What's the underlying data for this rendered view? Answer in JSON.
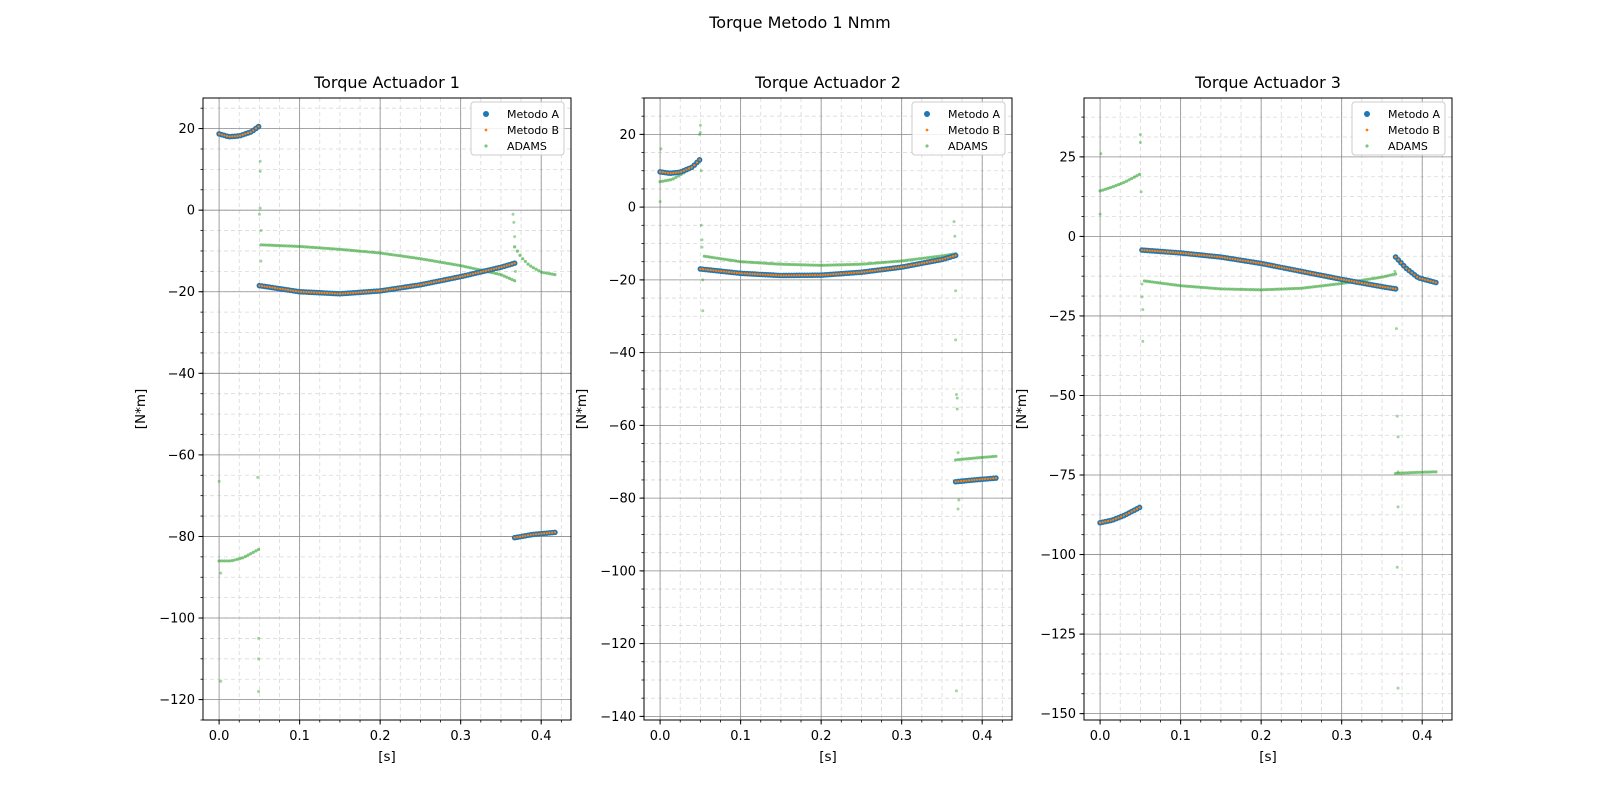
{
  "figure": {
    "suptitle": "Torque  Metodo 1 Nmm"
  },
  "chart_data": [
    {
      "type": "scatter",
      "title": "Torque Actuador 1",
      "xlabel": "[s]",
      "ylabel": "[N*m]",
      "xlim": [
        -0.02,
        0.437
      ],
      "ylim": [
        -125,
        27.5
      ],
      "xticks": [
        0.0,
        0.1,
        0.2,
        0.3,
        0.4
      ],
      "xticklabels": [
        "0.0",
        "0.1",
        "0.2",
        "0.3",
        "0.4"
      ],
      "yticks": [
        20,
        0,
        -20,
        -40,
        -60,
        -80,
        -100,
        -120
      ],
      "yticklabels": [
        "20",
        "0",
        "−20",
        "−40",
        "−60",
        "−80",
        "−100",
        "−120"
      ],
      "grid": true,
      "legend_position": "upper right",
      "series": [
        {
          "name": "Metodo A",
          "color": "#1f77b4",
          "segments": [
            {
              "x": [
                0.0,
                0.012,
                0.025,
                0.04,
                0.049
              ],
              "y": [
                18.7,
                18.0,
                18.2,
                19.2,
                20.5
              ]
            },
            {
              "x": [
                0.05,
                0.1,
                0.15,
                0.2,
                0.25,
                0.3,
                0.35,
                0.367
              ],
              "y": [
                -18.5,
                -20.0,
                -20.5,
                -19.8,
                -18.3,
                -16.3,
                -14.0,
                -13.0
              ]
            },
            {
              "x": [
                0.367,
                0.39,
                0.417
              ],
              "y": [
                -80.3,
                -79.5,
                -79.0
              ]
            }
          ]
        },
        {
          "name": "Metodo B",
          "color": "#ff7f0e",
          "segments": [
            {
              "x": [
                0.0,
                0.012,
                0.025,
                0.04,
                0.049
              ],
              "y": [
                18.7,
                18.0,
                18.2,
                19.2,
                20.5
              ]
            },
            {
              "x": [
                0.05,
                0.1,
                0.15,
                0.2,
                0.25,
                0.3,
                0.35,
                0.367
              ],
              "y": [
                -18.5,
                -20.0,
                -20.5,
                -19.8,
                -18.3,
                -16.3,
                -14.0,
                -13.0
              ]
            },
            {
              "x": [
                0.367,
                0.39,
                0.417
              ],
              "y": [
                -80.3,
                -79.5,
                -79.0
              ]
            }
          ]
        },
        {
          "name": "ADAMS",
          "color": "#2ca02c",
          "segments": [
            {
              "x": [
                0.0,
                0.015,
                0.03,
                0.049
              ],
              "y": [
                -86.0,
                -86.0,
                -85.2,
                -83.2
              ]
            },
            {
              "x": [
                0.052,
                0.1,
                0.15,
                0.2,
                0.25,
                0.3,
                0.35,
                0.367
              ],
              "y": [
                -8.5,
                -8.9,
                -9.6,
                -10.5,
                -11.9,
                -13.6,
                -15.8,
                -17.3
              ]
            },
            {
              "x": [
                0.367,
                0.375,
                0.385,
                0.4,
                0.417
              ],
              "y": [
                -9.0,
                -11.5,
                -13.5,
                -15.2,
                -15.8
              ]
            }
          ],
          "outliers": [
            [
              0.0,
              -66.5
            ],
            [
              0.002,
              -89.0
            ],
            [
              0.002,
              -115.5
            ],
            [
              0.048,
              -65.5
            ],
            [
              0.049,
              -105.0
            ],
            [
              0.049,
              -110.0
            ],
            [
              0.049,
              -118.0
            ],
            [
              0.05,
              -1.0
            ],
            [
              0.051,
              0.5
            ],
            [
              0.051,
              9.5
            ],
            [
              0.051,
              12.0
            ],
            [
              0.052,
              -5.0
            ],
            [
              0.052,
              -12.5
            ],
            [
              0.365,
              -1.0
            ],
            [
              0.366,
              -3.0
            ],
            [
              0.367,
              -6.5
            ],
            [
              0.368,
              -15.0
            ]
          ]
        }
      ]
    },
    {
      "type": "scatter",
      "title": "Torque Actuador 2",
      "xlabel": "[s]",
      "ylabel": "[N*m]",
      "xlim": [
        -0.02,
        0.437
      ],
      "ylim": [
        -141,
        30
      ],
      "xticks": [
        0.0,
        0.1,
        0.2,
        0.3,
        0.4
      ],
      "xticklabels": [
        "0.0",
        "0.1",
        "0.2",
        "0.3",
        "0.4"
      ],
      "yticks": [
        20,
        0,
        -20,
        -40,
        -60,
        -80,
        -100,
        -120,
        -140
      ],
      "yticklabels": [
        "20",
        "0",
        "−20",
        "−40",
        "−60",
        "−80",
        "−100",
        "−120",
        "−140"
      ],
      "grid": true,
      "legend_position": "upper right",
      "series": [
        {
          "name": "Metodo A",
          "color": "#1f77b4",
          "segments": [
            {
              "x": [
                0.0,
                0.012,
                0.025,
                0.04,
                0.049
              ],
              "y": [
                9.7,
                9.3,
                9.6,
                11.0,
                13.0
              ]
            },
            {
              "x": [
                0.05,
                0.1,
                0.15,
                0.2,
                0.25,
                0.3,
                0.35,
                0.367
              ],
              "y": [
                -17.0,
                -18.2,
                -18.8,
                -18.7,
                -17.9,
                -16.5,
                -14.4,
                -13.3
              ]
            },
            {
              "x": [
                0.367,
                0.39,
                0.417
              ],
              "y": [
                -75.5,
                -75.0,
                -74.5
              ]
            }
          ]
        },
        {
          "name": "Metodo B",
          "color": "#ff7f0e",
          "segments": [
            {
              "x": [
                0.0,
                0.012,
                0.025,
                0.04,
                0.049
              ],
              "y": [
                9.7,
                9.3,
                9.6,
                11.0,
                13.0
              ]
            },
            {
              "x": [
                0.05,
                0.1,
                0.15,
                0.2,
                0.25,
                0.3,
                0.35,
                0.367
              ],
              "y": [
                -17.0,
                -18.2,
                -18.8,
                -18.7,
                -17.9,
                -16.5,
                -14.4,
                -13.3
              ]
            },
            {
              "x": [
                0.367,
                0.39,
                0.417
              ],
              "y": [
                -75.5,
                -75.0,
                -74.5
              ]
            }
          ]
        },
        {
          "name": "ADAMS",
          "color": "#2ca02c",
          "segments": [
            {
              "x": [
                0.0,
                0.015,
                0.03,
                0.049
              ],
              "y": [
                7.0,
                7.6,
                9.5,
                12.5
              ]
            },
            {
              "x": [
                0.055,
                0.1,
                0.15,
                0.2,
                0.25,
                0.3,
                0.35,
                0.367
              ],
              "y": [
                -13.5,
                -15.0,
                -15.7,
                -16.0,
                -15.7,
                -14.8,
                -13.4,
                -12.8
              ]
            },
            {
              "x": [
                0.367,
                0.39,
                0.417
              ],
              "y": [
                -69.5,
                -69.0,
                -68.5
              ]
            }
          ],
          "outliers": [
            [
              0.0,
              1.5
            ],
            [
              0.001,
              16.0
            ],
            [
              0.049,
              20.0
            ],
            [
              0.05,
              22.5
            ],
            [
              0.05,
              20.5
            ],
            [
              0.051,
              10.0
            ],
            [
              0.051,
              -5.0
            ],
            [
              0.052,
              -9.0
            ],
            [
              0.052,
              -11.0
            ],
            [
              0.053,
              -20.0
            ],
            [
              0.053,
              -28.5
            ],
            [
              0.365,
              -4.0
            ],
            [
              0.366,
              -8.0
            ],
            [
              0.367,
              -23.0
            ],
            [
              0.367,
              -36.5
            ],
            [
              0.368,
              -51.5
            ],
            [
              0.369,
              -52.5
            ],
            [
              0.369,
              -55.5
            ],
            [
              0.37,
              -67.5
            ],
            [
              0.371,
              -80.5
            ],
            [
              0.37,
              -83.0
            ],
            [
              0.368,
              -133.0
            ]
          ]
        }
      ]
    },
    {
      "type": "scatter",
      "title": "Torque Actuador 3",
      "xlabel": "[s]",
      "ylabel": "[N*m]",
      "xlim": [
        -0.02,
        0.437
      ],
      "ylim": [
        -152,
        43.5
      ],
      "xticks": [
        0.0,
        0.1,
        0.2,
        0.3,
        0.4
      ],
      "xticklabels": [
        "0.0",
        "0.1",
        "0.2",
        "0.3",
        "0.4"
      ],
      "yticks": [
        25,
        0,
        -25,
        -50,
        -75,
        -100,
        -125,
        -150
      ],
      "yticklabels": [
        "25",
        "0",
        "−25",
        "−50",
        "−75",
        "−100",
        "−125",
        "−150"
      ],
      "grid": true,
      "legend_position": "upper right",
      "series": [
        {
          "name": "Metodo A",
          "color": "#1f77b4",
          "segments": [
            {
              "x": [
                0.0,
                0.015,
                0.03,
                0.049
              ],
              "y": [
                -90.0,
                -89.2,
                -87.7,
                -85.2
              ]
            },
            {
              "x": [
                0.052,
                0.1,
                0.15,
                0.2,
                0.25,
                0.3,
                0.35,
                0.367
              ],
              "y": [
                -4.3,
                -5.2,
                -6.5,
                -8.5,
                -11.0,
                -13.5,
                -15.8,
                -16.5
              ]
            },
            {
              "x": [
                0.367,
                0.38,
                0.395,
                0.417
              ],
              "y": [
                -6.5,
                -10.0,
                -13.0,
                -14.5
              ]
            }
          ]
        },
        {
          "name": "Metodo B",
          "color": "#ff7f0e",
          "segments": [
            {
              "x": [
                0.0,
                0.015,
                0.03,
                0.049
              ],
              "y": [
                -90.0,
                -89.2,
                -87.7,
                -85.2
              ]
            },
            {
              "x": [
                0.052,
                0.1,
                0.15,
                0.2,
                0.25,
                0.3,
                0.35,
                0.367
              ],
              "y": [
                -4.3,
                -5.2,
                -6.5,
                -8.5,
                -11.0,
                -13.5,
                -15.8,
                -16.5
              ]
            },
            {
              "x": [
                0.367,
                0.38,
                0.395,
                0.417
              ],
              "y": [
                -6.5,
                -10.0,
                -13.0,
                -14.5
              ]
            }
          ]
        },
        {
          "name": "ADAMS",
          "color": "#2ca02c",
          "segments": [
            {
              "x": [
                0.0,
                0.015,
                0.03,
                0.049
              ],
              "y": [
                14.3,
                15.5,
                17.0,
                19.5
              ]
            },
            {
              "x": [
                0.055,
                0.1,
                0.15,
                0.2,
                0.25,
                0.3,
                0.35,
                0.367
              ],
              "y": [
                -14.0,
                -15.5,
                -16.5,
                -16.8,
                -16.3,
                -14.8,
                -12.8,
                -11.8
              ]
            },
            {
              "x": [
                0.367,
                0.39,
                0.417
              ],
              "y": [
                -74.5,
                -74.2,
                -74.0
              ]
            }
          ],
          "outliers": [
            [
              0.0,
              7.0
            ],
            [
              0.001,
              26.0
            ],
            [
              0.05,
              29.5
            ],
            [
              0.05,
              32.0
            ],
            [
              0.051,
              14.0
            ],
            [
              0.052,
              -15.0
            ],
            [
              0.052,
              -19.0
            ],
            [
              0.053,
              -23.0
            ],
            [
              0.053,
              -33.0
            ],
            [
              0.366,
              -11.0
            ],
            [
              0.367,
              -16.0
            ],
            [
              0.368,
              -29.0
            ],
            [
              0.369,
              -56.5
            ],
            [
              0.37,
              -63.0
            ],
            [
              0.37,
              -74.0
            ],
            [
              0.37,
              -85.0
            ],
            [
              0.369,
              -104.0
            ],
            [
              0.37,
              -142.0
            ]
          ]
        }
      ]
    }
  ]
}
